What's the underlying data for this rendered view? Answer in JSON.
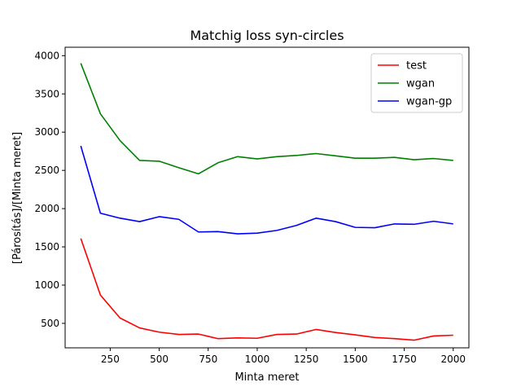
{
  "chart_data": {
    "type": "line",
    "title": "Matchig loss syn-circles",
    "xlabel": "Minta meret",
    "ylabel": "[Párosítás]/[Minta meret]",
    "xlim": [
      20,
      2080
    ],
    "ylim": [
      180,
      4110
    ],
    "xticks": [
      250,
      500,
      750,
      1000,
      1250,
      1500,
      1750,
      2000
    ],
    "yticks": [
      500,
      1000,
      1500,
      2000,
      2500,
      3000,
      3500,
      4000
    ],
    "grid": false,
    "legend_position": "top-right",
    "x": [
      100,
      200,
      300,
      400,
      500,
      600,
      700,
      800,
      900,
      1000,
      1100,
      1200,
      1300,
      1400,
      1500,
      1600,
      1700,
      1800,
      1900,
      2000
    ],
    "series": [
      {
        "name": "test",
        "color": "#ff0000",
        "values": [
          1610,
          870,
          570,
          440,
          385,
          355,
          360,
          300,
          310,
          305,
          355,
          360,
          420,
          380,
          350,
          315,
          300,
          280,
          335,
          345
        ]
      },
      {
        "name": "wgan",
        "color": "#008000",
        "values": [
          3900,
          3240,
          2890,
          2630,
          2620,
          2535,
          2455,
          2600,
          2680,
          2650,
          2680,
          2695,
          2720,
          2690,
          2660,
          2660,
          2670,
          2640,
          2655,
          2630
        ]
      },
      {
        "name": "wgan-gp",
        "color": "#0000ff",
        "values": [
          2820,
          1940,
          1875,
          1830,
          1895,
          1860,
          1695,
          1700,
          1670,
          1680,
          1715,
          1780,
          1875,
          1830,
          1755,
          1750,
          1800,
          1795,
          1835,
          1800
        ]
      }
    ]
  }
}
